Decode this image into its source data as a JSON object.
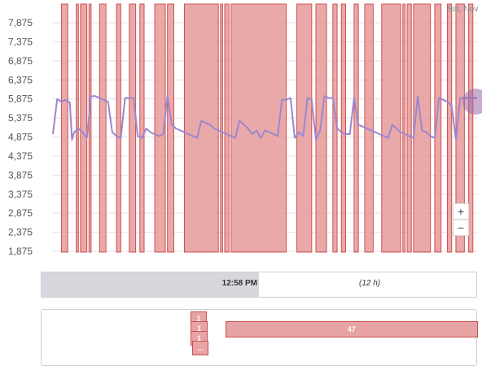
{
  "chart_data": {
    "type": "line",
    "corner_label": "Sat, Nov",
    "y_ticks": [
      "7,875",
      "7,375",
      "6,875",
      "6,375",
      "5,875",
      "5,375",
      "4,875",
      "4,375",
      "3,875",
      "3,375",
      "2,875",
      "2,375",
      "1,875"
    ],
    "ylim": [
      1875,
      8125
    ],
    "xlim": [
      0,
      100
    ],
    "grid": true,
    "series": [
      {
        "color": "#9b87cf",
        "x": [
          0,
          1,
          2,
          3,
          4,
          4.5,
          5,
          6,
          7,
          8,
          9,
          10,
          11,
          12,
          13,
          14,
          15,
          16,
          17,
          18,
          19,
          20,
          21,
          22,
          23,
          24,
          25,
          26,
          27,
          28,
          29,
          30,
          31,
          32,
          33,
          34,
          35,
          36,
          37,
          38,
          39,
          40,
          41,
          42,
          43,
          44,
          45,
          46,
          47,
          48,
          49,
          50,
          51,
          52,
          53,
          54,
          55,
          56,
          57,
          58,
          59,
          60,
          61,
          62,
          63,
          64,
          65,
          66,
          67,
          68,
          69,
          70,
          71,
          72,
          73,
          74,
          75,
          76,
          77,
          78,
          79,
          80,
          81,
          82,
          83,
          84,
          85,
          86,
          87,
          88,
          89,
          90,
          91,
          92,
          93,
          94,
          95,
          96,
          97,
          98,
          99,
          100
        ],
        "y": [
          4950,
          5870,
          5800,
          5850,
          5780,
          4800,
          5000,
          5100,
          5000,
          4850,
          5950,
          5950,
          5900,
          5850,
          5800,
          5000,
          4900,
          4850,
          5900,
          5900,
          5900,
          4900,
          4850,
          5100,
          5000,
          4950,
          4900,
          4950,
          5950,
          5200,
          5100,
          5050,
          5000,
          4950,
          4900,
          4850,
          5300,
          5250,
          5200,
          5100,
          5050,
          5000,
          4950,
          4900,
          4850,
          5300,
          5200,
          5100,
          4950,
          5050,
          4850,
          5050,
          5000,
          4950,
          4900,
          5850,
          5850,
          5900,
          4850,
          5000,
          4900,
          5900,
          5850,
          4800,
          5050,
          5950,
          5900,
          5900,
          5100,
          5000,
          4950,
          4950,
          5900,
          5200,
          5150,
          5100,
          5050,
          5000,
          4950,
          4900,
          4850,
          5200,
          5100,
          5000,
          4950,
          4900,
          4850,
          5950,
          5050,
          5000,
          4900,
          4850,
          5900,
          5850,
          5800,
          5700,
          4800,
          5900,
          5900,
          5900,
          5900,
          5900
        ]
      }
    ],
    "events": [
      [
        2,
        3.5
      ],
      [
        5.5,
        6
      ],
      [
        6.5,
        8
      ],
      [
        8.5,
        9
      ],
      [
        11,
        12.5
      ],
      [
        15,
        16
      ],
      [
        18,
        19.5
      ],
      [
        20.5,
        21.5
      ],
      [
        24,
        26.5
      ],
      [
        27,
        28.5
      ],
      [
        31,
        39
      ],
      [
        39.5,
        40
      ],
      [
        40.5,
        41.5
      ],
      [
        42,
        55
      ],
      [
        57.5,
        61
      ],
      [
        62,
        64.5
      ],
      [
        66,
        67
      ],
      [
        68,
        69
      ],
      [
        71,
        72
      ],
      [
        73.5,
        75.5
      ],
      [
        77.5,
        82
      ],
      [
        82.5,
        83
      ],
      [
        83.5,
        84.5
      ],
      [
        85,
        89
      ],
      [
        90,
        91.5
      ],
      [
        93,
        94
      ],
      [
        95,
        97
      ],
      [
        98,
        99
      ]
    ]
  },
  "zoom": {
    "in_label": "+",
    "out_label": "−"
  },
  "timeline": {
    "time_label": "12:58 PM",
    "duration_label": "(12 h)",
    "fill_fraction": 0.5
  },
  "bottom_lane": {
    "items": [
      {
        "label": "1",
        "start": 0.341,
        "end": 0.379,
        "row": 0
      },
      {
        "label": "1",
        "start": 0.341,
        "end": 0.381,
        "row": 1
      },
      {
        "label": "47",
        "start": 0.421,
        "end": 1.0,
        "row": 1
      },
      {
        "label": "1",
        "start": 0.341,
        "end": 0.381,
        "row": 2
      },
      {
        "label": "...",
        "start": 0.345,
        "end": 0.383,
        "row": 3
      }
    ]
  }
}
